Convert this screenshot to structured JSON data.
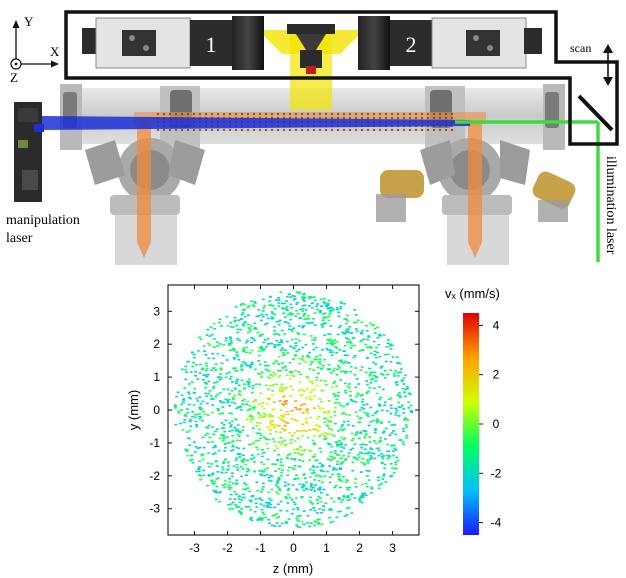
{
  "axes_glyph": {
    "y": "Y",
    "x": "X",
    "z": "Z"
  },
  "cameras": {
    "camera_1": "1",
    "camera_2": "2"
  },
  "labels": {
    "scan": "scan",
    "manipulation_line1": "manipulation",
    "manipulation_line2": "laser",
    "illumination": "illumination laser"
  },
  "colors": {
    "manipulation_beam": "#1c2fd6",
    "illumination_beam": "#3ddc3d",
    "light_sheet": "#f2e400",
    "chamber": "#c9c9c9",
    "probe": "#f08b3c",
    "frame": "#111111"
  },
  "plot": {
    "xlabel": "z (mm)",
    "ylabel": "y (mm)",
    "x_ticks": [
      "-3",
      "-2",
      "-1",
      "0",
      "1",
      "2",
      "3"
    ],
    "y_ticks": [
      "3",
      "2",
      "1",
      "0",
      "-1",
      "-2",
      "-3"
    ],
    "colorbar_title": "vₓ (mm/s)",
    "colorbar_ticks": [
      "4",
      "2",
      "0",
      "-2",
      "-4"
    ]
  },
  "chart_data": {
    "type": "scatter",
    "xlabel": "z (mm)",
    "ylabel": "y (mm)",
    "xlim": [
      -3.8,
      3.8
    ],
    "ylim": [
      -3.8,
      3.8
    ],
    "x_ticks": [
      -3,
      -2,
      -1,
      0,
      1,
      2,
      3
    ],
    "y_ticks": [
      -3,
      -2,
      -1,
      0,
      1,
      2,
      3
    ],
    "disk_radius": 3.6,
    "colorbar": {
      "label": "vₓ (mm/s)",
      "min": -4.5,
      "max": 4.5,
      "ticks": [
        4,
        2,
        0,
        -2,
        -4
      ]
    },
    "field": {
      "background_vx": -1.5,
      "center_vx": 2.5,
      "center": [
        0,
        0
      ],
      "core_radius": 0.8
    }
  }
}
